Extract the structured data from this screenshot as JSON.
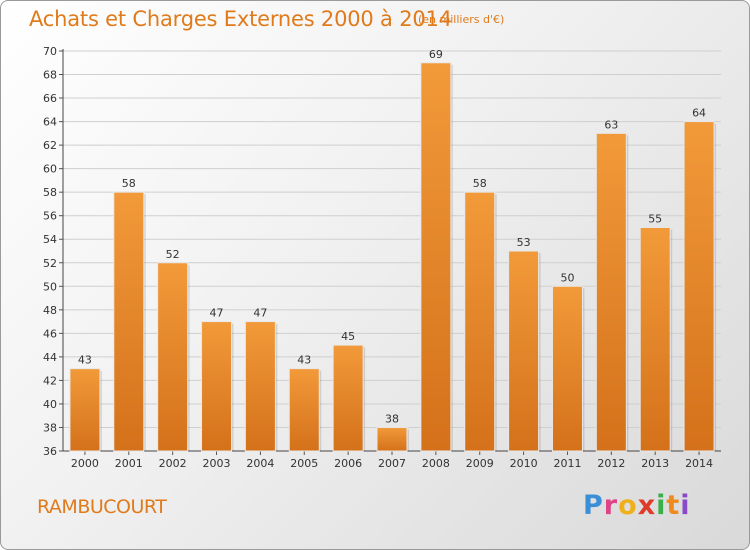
{
  "chart_data": {
    "type": "bar",
    "title": "Achats et Charges Externes 2000 à 2014",
    "subtitle": "(en milliers d'€)",
    "categories": [
      "2000",
      "2001",
      "2002",
      "2003",
      "2004",
      "2005",
      "2006",
      "2007",
      "2008",
      "2009",
      "2010",
      "2011",
      "2012",
      "2013",
      "2014"
    ],
    "values": [
      43,
      58,
      52,
      47,
      47,
      43,
      45,
      38,
      69,
      58,
      53,
      50,
      63,
      55,
      64
    ],
    "ylim": [
      36,
      70
    ],
    "yticks": [
      36,
      38,
      40,
      42,
      44,
      46,
      48,
      50,
      52,
      54,
      56,
      58,
      60,
      62,
      64,
      66,
      68,
      70
    ],
    "grid": true,
    "bar_color": "#f29a3a",
    "bar_color_dark": "#d4711a"
  },
  "footer": {
    "commune": "RAMBUCOURT",
    "brand_letters": [
      "P",
      "r",
      "o",
      "x",
      "i",
      "t",
      "i"
    ],
    "brand_colors": [
      "#3a8fd6",
      "#e0428a",
      "#f0b01c",
      "#e03a2a",
      "#3ab04a",
      "#f08a1c",
      "#8a4ac8"
    ]
  }
}
